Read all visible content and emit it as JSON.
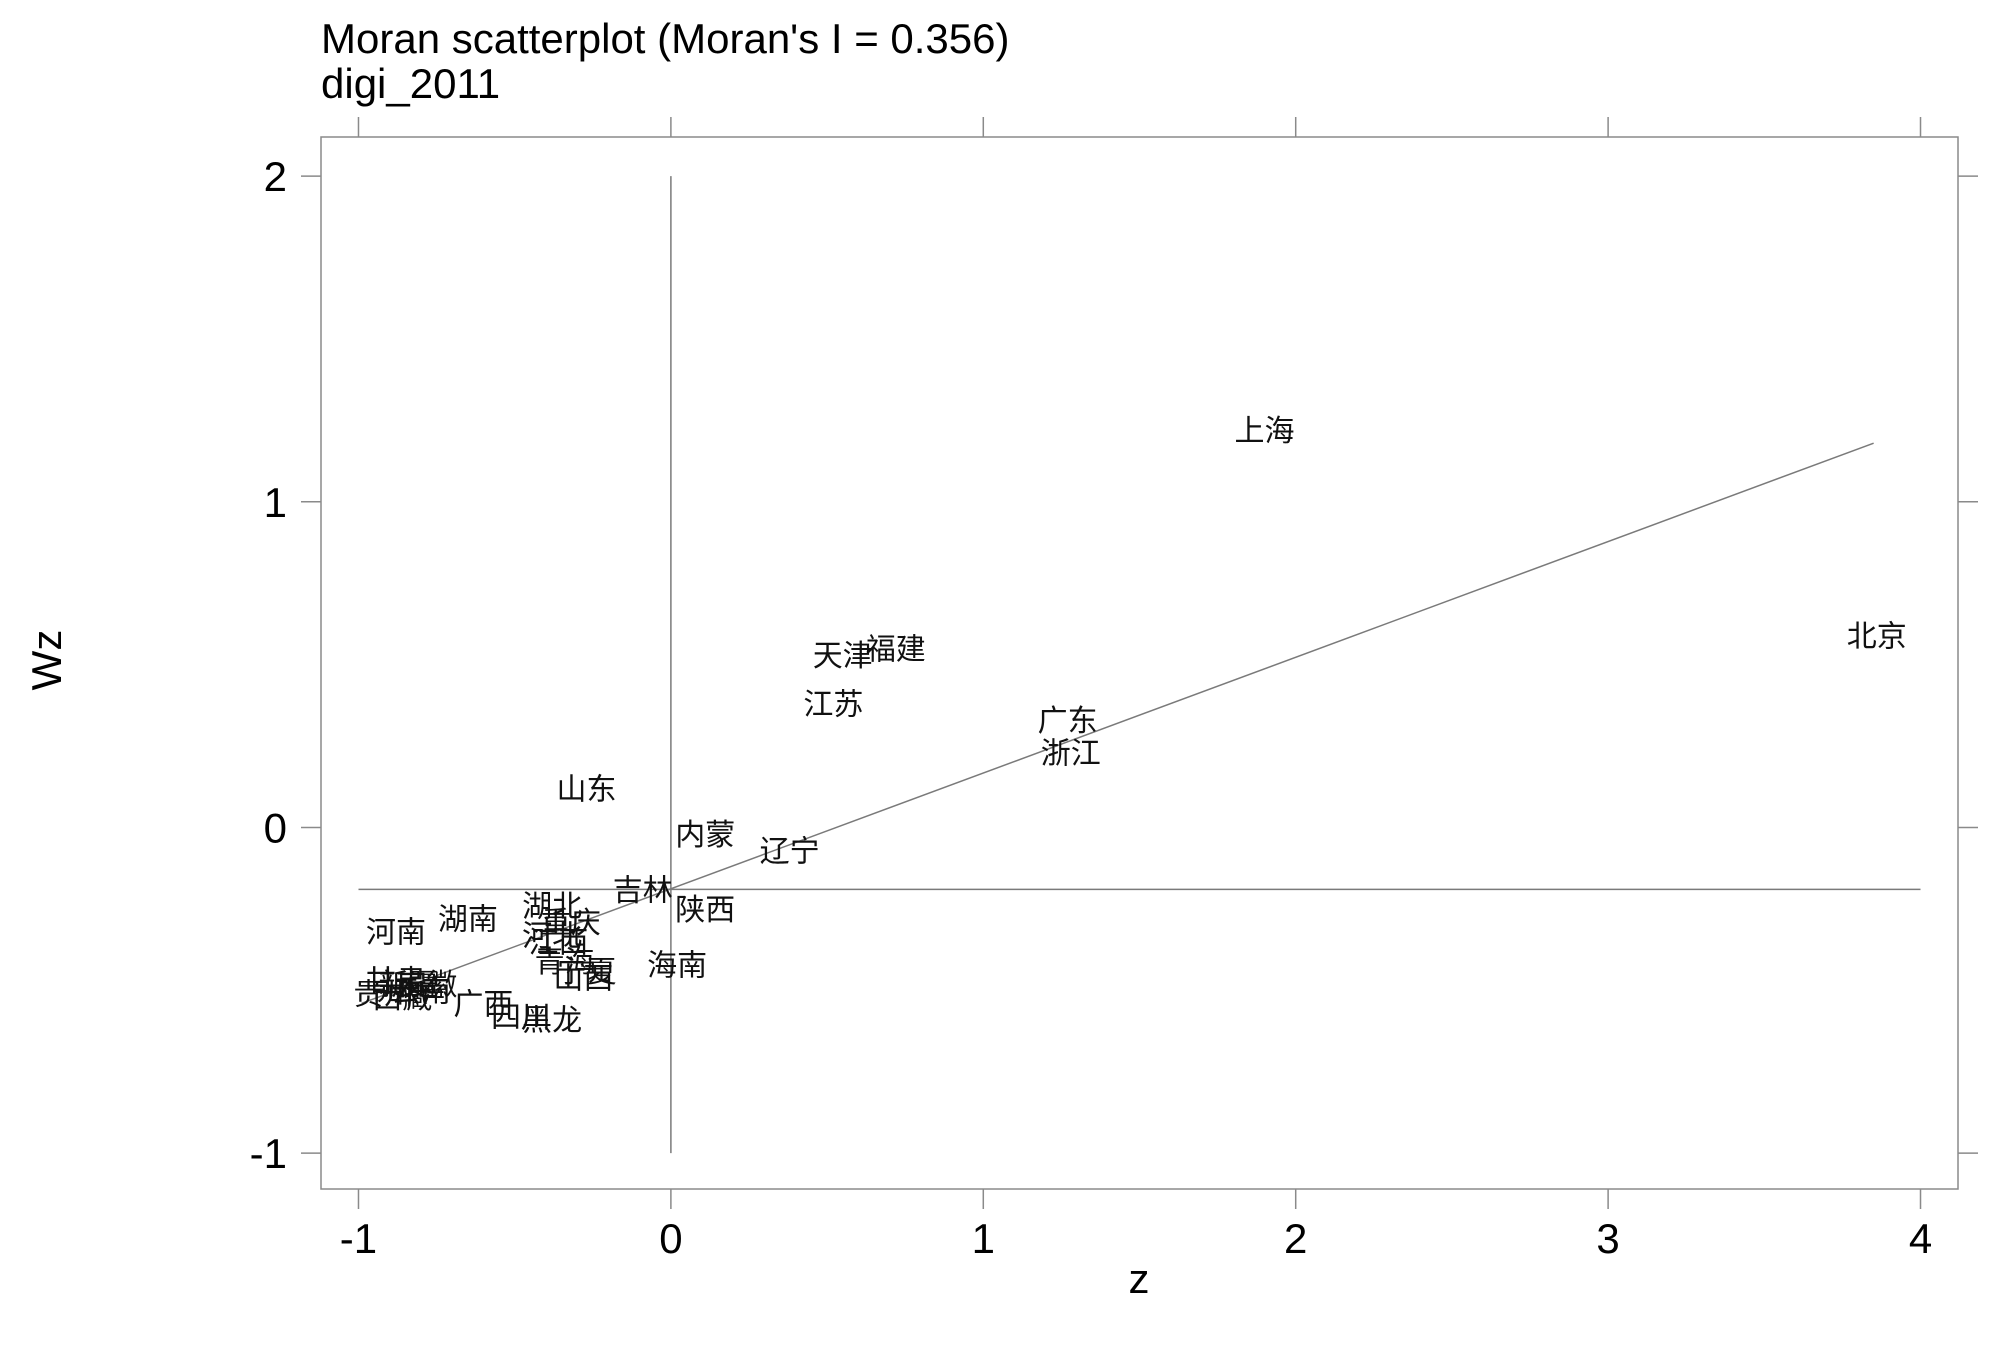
{
  "chart_data": {
    "type": "scatter",
    "title": "Moran scatterplot (Moran's I = 0.356)",
    "subtitle": "digi_2011",
    "xlabel": "z",
    "ylabel": "Wz",
    "xlim": [
      -1.12,
      4.12
    ],
    "ylim": [
      -1.11,
      2.12
    ],
    "xticks": [
      -1,
      0,
      1,
      2,
      3,
      4
    ],
    "yticks": [
      -1,
      0,
      1,
      2
    ],
    "xtick_labels": [
      "-1",
      "0",
      "1",
      "2",
      "3",
      "4"
    ],
    "ytick_labels": [
      "-1",
      "0",
      "1",
      "2"
    ],
    "reference_lines": {
      "vertical": {
        "x": 0,
        "y_range": [
          -1,
          2
        ]
      },
      "horizontal": {
        "y": -0.19,
        "x_range": [
          -1,
          4
        ]
      }
    },
    "fit_line": {
      "x": [
        -0.99,
        3.85
      ],
      "y": [
        -0.54,
        1.18
      ],
      "slope": 0.356
    },
    "grid": false,
    "points": [
      {
        "label": "上海",
        "x": 1.9,
        "y": 1.22
      },
      {
        "label": "北京",
        "x": 3.86,
        "y": 0.59
      },
      {
        "label": "天津",
        "x": 0.55,
        "y": 0.53
      },
      {
        "label": "福建",
        "x": 0.72,
        "y": 0.55
      },
      {
        "label": "江苏",
        "x": 0.52,
        "y": 0.38
      },
      {
        "label": "广东",
        "x": 1.27,
        "y": 0.33
      },
      {
        "label": "浙江",
        "x": 1.28,
        "y": 0.23
      },
      {
        "label": "山东",
        "x": -0.27,
        "y": 0.12
      },
      {
        "label": "内蒙",
        "x": 0.11,
        "y": -0.02
      },
      {
        "label": "辽宁",
        "x": 0.38,
        "y": -0.07
      },
      {
        "label": "吉林",
        "x": -0.09,
        "y": -0.19
      },
      {
        "label": "陕西",
        "x": 0.11,
        "y": -0.25
      },
      {
        "label": "湖北",
        "x": -0.38,
        "y": -0.24
      },
      {
        "label": "重庆",
        "x": -0.32,
        "y": -0.29
      },
      {
        "label": "湖南",
        "x": -0.65,
        "y": -0.28
      },
      {
        "label": "河南",
        "x": -0.88,
        "y": -0.32
      },
      {
        "label": "河北",
        "x": -0.38,
        "y": -0.33
      },
      {
        "label": "江西",
        "x": -0.36,
        "y": -0.35
      },
      {
        "label": "青海",
        "x": -0.34,
        "y": -0.41
      },
      {
        "label": "宁夏",
        "x": -0.27,
        "y": -0.44
      },
      {
        "label": "山西",
        "x": -0.28,
        "y": -0.46
      },
      {
        "label": "海南",
        "x": 0.02,
        "y": -0.42
      },
      {
        "label": "甘肃",
        "x": -0.88,
        "y": -0.47
      },
      {
        "label": "新疆",
        "x": -0.84,
        "y": -0.48
      },
      {
        "label": "安徽",
        "x": -0.78,
        "y": -0.48
      },
      {
        "label": "云南",
        "x": -0.8,
        "y": -0.5
      },
      {
        "label": "贵州",
        "x": -0.92,
        "y": -0.51
      },
      {
        "label": "西藏",
        "x": -0.86,
        "y": -0.52
      },
      {
        "label": "广西",
        "x": -0.6,
        "y": -0.54
      },
      {
        "label": "四川",
        "x": -0.48,
        "y": -0.58
      },
      {
        "label": "黑龙",
        "x": -0.38,
        "y": -0.59
      }
    ]
  }
}
